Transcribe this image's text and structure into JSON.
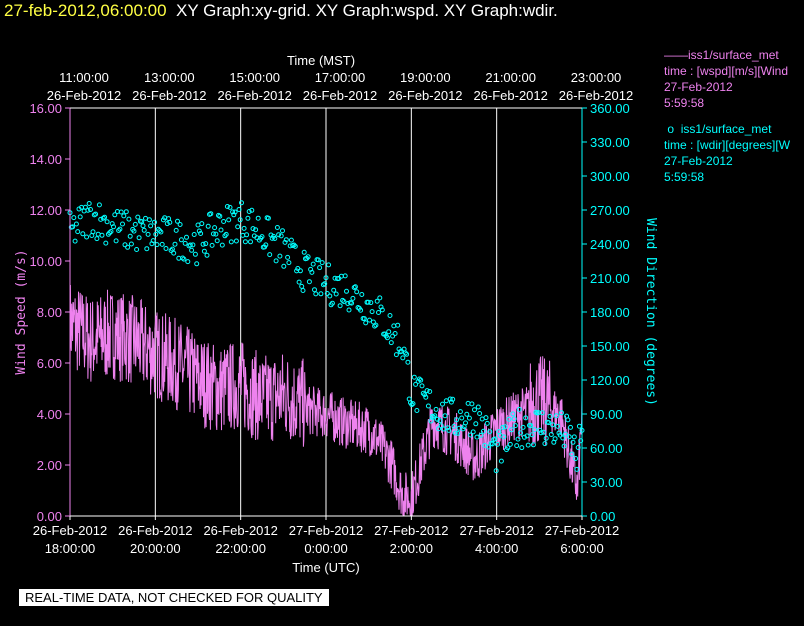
{
  "header": {
    "timestamp": "27-feb-2012,06:00:00",
    "title": "XY Graph:xy-grid.  XY Graph:wspd.  XY Graph:wdir."
  },
  "legend": [
    {
      "line1": "iss1/surface_met",
      "line2": "time : [wspd][m/s][Wind",
      "line3": "27-Feb-2012",
      "line4": "5:59:58",
      "color": "#ee82ee",
      "marker": "line"
    },
    {
      "line1": "iss1/surface_met",
      "line2": "time : [wdir][degrees][W",
      "line3": "27-Feb-2012",
      "line4": "5:59:58",
      "color": "#00ffff",
      "marker": "circle"
    }
  ],
  "footer": "REAL-TIME DATA, NOT CHECKED FOR QUALITY",
  "chart_data": {
    "type": "line",
    "top_axis_label": "Time (MST)",
    "top_ticks": [
      {
        "t": "11:00:00",
        "d": "26-Feb-2012"
      },
      {
        "t": "13:00:00",
        "d": "26-Feb-2012"
      },
      {
        "t": "15:00:00",
        "d": "26-Feb-2012"
      },
      {
        "t": "17:00:00",
        "d": "26-Feb-2012"
      },
      {
        "t": "19:00:00",
        "d": "26-Feb-2012"
      },
      {
        "t": "21:00:00",
        "d": "26-Feb-2012"
      },
      {
        "t": "23:00:00",
        "d": "26-Feb-2012"
      }
    ],
    "xlabel": "Time (UTC)",
    "x_ticks": [
      {
        "d": "26-Feb-2012",
        "t": "18:00:00"
      },
      {
        "d": "26-Feb-2012",
        "t": "20:00:00"
      },
      {
        "d": "26-Feb-2012",
        "t": "22:00:00"
      },
      {
        "d": "27-Feb-2012",
        "t": "0:00:00"
      },
      {
        "d": "27-Feb-2012",
        "t": "2:00:00"
      },
      {
        "d": "27-Feb-2012",
        "t": "4:00:00"
      },
      {
        "d": "27-Feb-2012",
        "t": "6:00:00"
      }
    ],
    "xlim_hours": [
      0,
      12
    ],
    "left_axis": {
      "label": "Wind Speed (m/s)",
      "ylim": [
        0,
        16
      ],
      "ticks": [
        "0.00",
        "2.00",
        "4.00",
        "6.00",
        "8.00",
        "10.00",
        "12.00",
        "14.00",
        "16.00"
      ],
      "color": "#ee82ee"
    },
    "right_axis": {
      "label": "Wind Direction (degrees)",
      "ylim": [
        0,
        360
      ],
      "ticks": [
        "0.00",
        "30.00",
        "60.00",
        "90.00",
        "120.00",
        "150.00",
        "180.00",
        "210.00",
        "240.00",
        "270.00",
        "300.00",
        "330.00",
        "360.00"
      ],
      "color": "#00ffff"
    },
    "grid": "vertical",
    "series": [
      {
        "name": "iss1/surface_met wspd",
        "axis": "left",
        "color": "#ee82ee",
        "style": "line",
        "x_hours": [
          0,
          0.5,
          1,
          1.5,
          2,
          2.5,
          3,
          3.5,
          4,
          4.5,
          5,
          5.5,
          6,
          6.5,
          7,
          7.2,
          7.5,
          7.8,
          8,
          8.5,
          9,
          9.5,
          10,
          10.5,
          11,
          11.5,
          11.7,
          11.9,
          12
        ],
        "values": [
          7.2,
          6.5,
          6.8,
          6.5,
          6.0,
          5.6,
          5.0,
          4.6,
          4.8,
          4.2,
          4.4,
          4.0,
          3.8,
          3.4,
          3.2,
          2.8,
          2.0,
          0.6,
          0.5,
          3.5,
          3.0,
          2.0,
          3.2,
          3.8,
          4.2,
          3.8,
          2.2,
          0.8,
          4.0
        ]
      },
      {
        "name": "iss1/surface_met wdir",
        "axis": "right",
        "color": "#00ffff",
        "style": "circle",
        "x_hours": [
          0,
          0.5,
          1,
          1.5,
          2,
          2.5,
          3,
          3.5,
          4,
          4.5,
          5,
          5.5,
          6,
          6.5,
          7,
          7.2,
          7.5,
          7.8,
          8,
          8.5,
          9,
          9.5,
          10,
          10.5,
          11,
          11.5,
          11.7,
          11.9,
          12
        ],
        "values": [
          250,
          265,
          255,
          250,
          248,
          245,
          240,
          255,
          262,
          250,
          235,
          215,
          205,
          200,
          185,
          180,
          165,
          150,
          110,
          95,
          85,
          90,
          55,
          78,
          80,
          75,
          70,
          50,
          80
        ]
      }
    ]
  }
}
